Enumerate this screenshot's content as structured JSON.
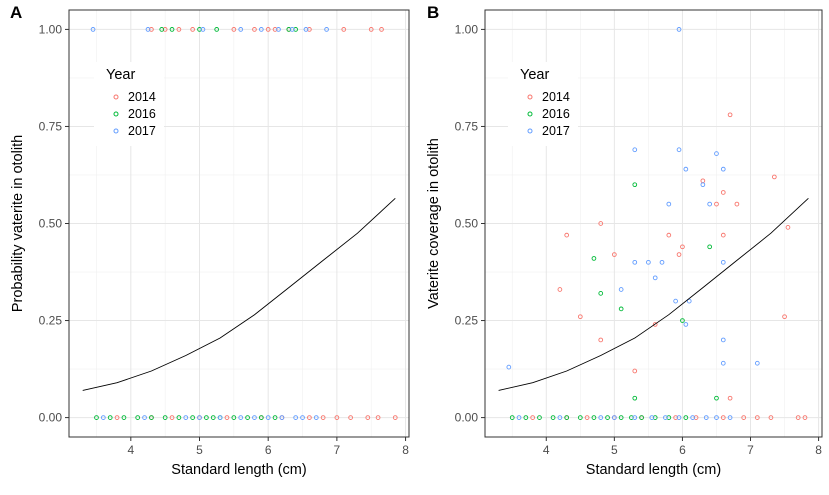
{
  "chart_data": [
    {
      "panel": "A",
      "type": "scatter",
      "xlabel": "Standard length (cm)",
      "ylabel": "Probability vaterite in otolith",
      "xlim": [
        3.1,
        8.05
      ],
      "ylim": [
        -0.05,
        1.05
      ],
      "xticks": [
        4,
        5,
        6,
        7,
        8
      ],
      "yticks": [
        0.0,
        0.25,
        0.5,
        0.75,
        1.0
      ],
      "ytick_labels": [
        "0.00",
        "0.25",
        "0.50",
        "0.75",
        "1.00"
      ],
      "legend": {
        "title": "Year",
        "position": "top-left"
      },
      "series": [
        {
          "name": "2014",
          "color": "#F8766D",
          "points": [
            [
              4.3,
              1.0
            ],
            [
              4.5,
              1.0
            ],
            [
              4.7,
              1.0
            ],
            [
              4.9,
              1.0
            ],
            [
              5.5,
              1.0
            ],
            [
              5.8,
              1.0
            ],
            [
              6.0,
              1.0
            ],
            [
              6.1,
              1.0
            ],
            [
              6.3,
              1.0
            ],
            [
              6.6,
              1.0
            ],
            [
              7.1,
              1.0
            ],
            [
              7.5,
              1.0
            ],
            [
              7.65,
              1.0
            ],
            [
              3.8,
              0.0
            ],
            [
              4.3,
              0.0
            ],
            [
              4.6,
              0.0
            ],
            [
              5.0,
              0.0
            ],
            [
              5.4,
              0.0
            ],
            [
              5.9,
              0.0
            ],
            [
              6.2,
              0.0
            ],
            [
              6.6,
              0.0
            ],
            [
              6.8,
              0.0
            ],
            [
              7.0,
              0.0
            ],
            [
              7.2,
              0.0
            ],
            [
              7.45,
              0.0
            ],
            [
              7.6,
              0.0
            ],
            [
              7.85,
              0.0
            ]
          ]
        },
        {
          "name": "2016",
          "color": "#00BA38",
          "points": [
            [
              4.45,
              1.0
            ],
            [
              4.6,
              1.0
            ],
            [
              5.0,
              1.0
            ],
            [
              5.25,
              1.0
            ],
            [
              6.3,
              1.0
            ],
            [
              6.4,
              1.0
            ],
            [
              3.5,
              0.0
            ],
            [
              3.7,
              0.0
            ],
            [
              3.9,
              0.0
            ],
            [
              4.1,
              0.0
            ],
            [
              4.3,
              0.0
            ],
            [
              4.5,
              0.0
            ],
            [
              4.7,
              0.0
            ],
            [
              4.9,
              0.0
            ],
            [
              5.1,
              0.0
            ],
            [
              5.2,
              0.0
            ],
            [
              5.3,
              0.0
            ],
            [
              5.5,
              0.0
            ],
            [
              5.7,
              0.0
            ],
            [
              5.9,
              0.0
            ],
            [
              6.1,
              0.0
            ]
          ]
        },
        {
          "name": "2017",
          "color": "#619CFF",
          "points": [
            [
              3.45,
              1.0
            ],
            [
              4.25,
              1.0
            ],
            [
              5.05,
              1.0
            ],
            [
              5.6,
              1.0
            ],
            [
              5.9,
              1.0
            ],
            [
              6.15,
              1.0
            ],
            [
              6.35,
              1.0
            ],
            [
              6.55,
              1.0
            ],
            [
              6.85,
              1.0
            ],
            [
              3.6,
              0.0
            ],
            [
              4.2,
              0.0
            ],
            [
              4.8,
              0.0
            ],
            [
              5.0,
              0.0
            ],
            [
              5.3,
              0.0
            ],
            [
              5.6,
              0.0
            ],
            [
              5.8,
              0.0
            ],
            [
              6.0,
              0.0
            ],
            [
              6.2,
              0.0
            ],
            [
              6.4,
              0.0
            ],
            [
              6.5,
              0.0
            ],
            [
              6.7,
              0.0
            ]
          ]
        }
      ],
      "curve": {
        "x": [
          3.3,
          3.8,
          4.3,
          4.8,
          5.3,
          5.8,
          6.3,
          6.8,
          7.3,
          7.85
        ],
        "y": [
          0.07,
          0.09,
          0.12,
          0.16,
          0.205,
          0.265,
          0.335,
          0.405,
          0.475,
          0.565
        ]
      }
    },
    {
      "panel": "B",
      "type": "scatter",
      "xlabel": "Standard length (cm)",
      "ylabel": "Vaterite coverage in otolith",
      "xlim": [
        3.1,
        8.05
      ],
      "ylim": [
        -0.05,
        1.05
      ],
      "xticks": [
        4,
        5,
        6,
        7,
        8
      ],
      "yticks": [
        0.0,
        0.25,
        0.5,
        0.75,
        1.0
      ],
      "ytick_labels": [
        "0.00",
        "0.25",
        "0.50",
        "0.75",
        "1.00"
      ],
      "legend": {
        "title": "Year",
        "position": "top-left"
      },
      "series": [
        {
          "name": "2014",
          "color": "#F8766D",
          "points": [
            [
              4.3,
              0.47
            ],
            [
              4.2,
              0.33
            ],
            [
              4.5,
              0.26
            ],
            [
              4.8,
              0.5
            ],
            [
              4.8,
              0.2
            ],
            [
              5.0,
              0.42
            ],
            [
              5.3,
              0.12
            ],
            [
              5.6,
              0.24
            ],
            [
              5.8,
              0.47
            ],
            [
              6.0,
              0.44
            ],
            [
              6.3,
              0.61
            ],
            [
              6.5,
              0.55
            ],
            [
              6.6,
              0.58
            ],
            [
              6.7,
              0.78
            ],
            [
              6.8,
              0.55
            ],
            [
              6.6,
              0.47
            ],
            [
              7.35,
              0.62
            ],
            [
              7.55,
              0.49
            ],
            [
              7.5,
              0.26
            ],
            [
              6.7,
              0.05
            ],
            [
              5.95,
              0.42
            ],
            [
              3.8,
              0.0
            ],
            [
              4.3,
              0.0
            ],
            [
              4.6,
              0.0
            ],
            [
              5.0,
              0.0
            ],
            [
              5.4,
              0.0
            ],
            [
              5.9,
              0.0
            ],
            [
              6.2,
              0.0
            ],
            [
              6.6,
              0.0
            ],
            [
              6.9,
              0.0
            ],
            [
              7.1,
              0.0
            ],
            [
              7.3,
              0.0
            ],
            [
              7.7,
              0.0
            ],
            [
              7.8,
              0.0
            ]
          ]
        },
        {
          "name": "2016",
          "color": "#00BA38",
          "points": [
            [
              4.7,
              0.41
            ],
            [
              4.8,
              0.32
            ],
            [
              5.1,
              0.28
            ],
            [
              5.3,
              0.6
            ],
            [
              6.0,
              0.25
            ],
            [
              6.4,
              0.44
            ],
            [
              6.5,
              0.05
            ],
            [
              5.3,
              0.05
            ],
            [
              3.5,
              0.0
            ],
            [
              3.7,
              0.0
            ],
            [
              3.9,
              0.0
            ],
            [
              4.1,
              0.0
            ],
            [
              4.3,
              0.0
            ],
            [
              4.5,
              0.0
            ],
            [
              4.7,
              0.0
            ],
            [
              4.9,
              0.0
            ],
            [
              5.1,
              0.0
            ],
            [
              5.25,
              0.0
            ],
            [
              5.4,
              0.0
            ],
            [
              5.6,
              0.0
            ],
            [
              5.8,
              0.0
            ],
            [
              6.05,
              0.0
            ]
          ]
        },
        {
          "name": "2017",
          "color": "#619CFF",
          "points": [
            [
              3.45,
              0.13
            ],
            [
              5.95,
              1.0
            ],
            [
              5.3,
              0.69
            ],
            [
              5.95,
              0.69
            ],
            [
              6.05,
              0.64
            ],
            [
              6.5,
              0.68
            ],
            [
              6.6,
              0.64
            ],
            [
              5.8,
              0.55
            ],
            [
              6.4,
              0.55
            ],
            [
              6.3,
              0.6
            ],
            [
              5.5,
              0.4
            ],
            [
              5.3,
              0.4
            ],
            [
              5.6,
              0.36
            ],
            [
              6.1,
              0.3
            ],
            [
              6.6,
              0.2
            ],
            [
              6.6,
              0.14
            ],
            [
              7.1,
              0.14
            ],
            [
              5.1,
              0.33
            ],
            [
              6.05,
              0.24
            ],
            [
              5.9,
              0.3
            ],
            [
              5.7,
              0.4
            ],
            [
              6.6,
              0.4
            ],
            [
              3.6,
              0.0
            ],
            [
              4.2,
              0.0
            ],
            [
              4.8,
              0.0
            ],
            [
              5.0,
              0.0
            ],
            [
              5.3,
              0.0
            ],
            [
              5.55,
              0.0
            ],
            [
              5.75,
              0.0
            ],
            [
              5.95,
              0.0
            ],
            [
              6.15,
              0.0
            ],
            [
              6.35,
              0.0
            ],
            [
              6.5,
              0.0
            ],
            [
              6.7,
              0.0
            ]
          ]
        }
      ],
      "curve": {
        "x": [
          3.3,
          3.8,
          4.3,
          4.8,
          5.3,
          5.8,
          6.3,
          6.8,
          7.3,
          7.85
        ],
        "y": [
          0.07,
          0.09,
          0.12,
          0.16,
          0.205,
          0.265,
          0.335,
          0.405,
          0.475,
          0.565
        ]
      }
    }
  ]
}
